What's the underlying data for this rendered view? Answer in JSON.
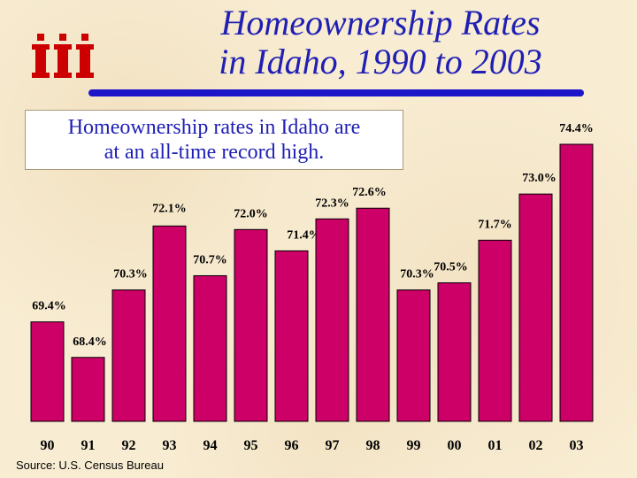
{
  "header": {
    "title_line1": "Homeownership Rates",
    "title_line2": "in Idaho, 1990 to 2003",
    "logo_text": "iii"
  },
  "note": {
    "line1": "Homeownership rates in Idaho are",
    "line2": "at an all-time record high."
  },
  "source": "Source:  U.S. Census Bureau",
  "colors": {
    "bar": "#cc0066",
    "title": "#1f1fb4",
    "rule": "#1c16c8",
    "logo": "#cc0000"
  },
  "chart_data": {
    "type": "bar",
    "title": "Homeownership Rates in Idaho, 1990 to 2003",
    "categories": [
      "90",
      "91",
      "92",
      "93",
      "94",
      "95",
      "96",
      "97",
      "98",
      "99",
      "00",
      "01",
      "02",
      "03"
    ],
    "values": [
      69.4,
      68.4,
      70.3,
      72.1,
      70.7,
      72.0,
      71.4,
      72.3,
      72.6,
      70.3,
      70.5,
      71.7,
      73.0,
      74.4
    ],
    "value_labels": [
      "69.4%",
      "68.4%",
      "70.3%",
      "72.1%",
      "70.7%",
      "72.0%",
      "71.4%",
      "72.3%",
      "72.6%",
      "70.3%",
      "70.5%",
      "71.7%",
      "73.0%",
      "74.4%"
    ],
    "xlabel": "",
    "ylabel": "",
    "unit": "%",
    "grid": false,
    "legend": "none"
  }
}
